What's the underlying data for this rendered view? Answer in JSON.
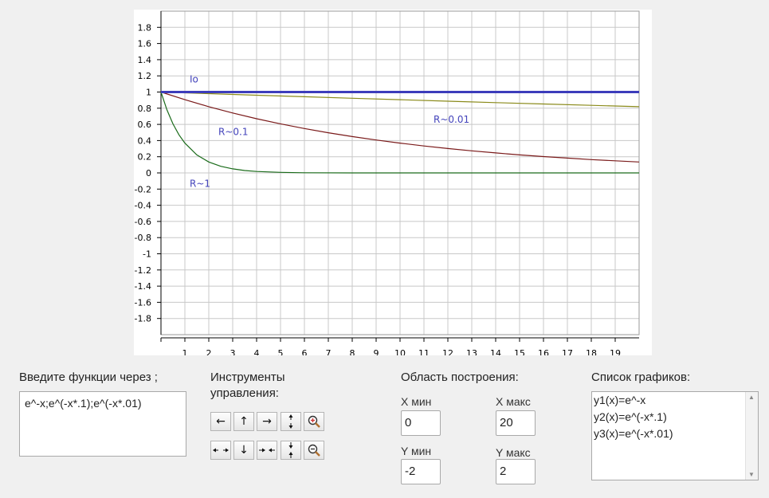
{
  "chart_data": {
    "type": "line",
    "xlim": [
      0,
      20
    ],
    "ylim": [
      -2,
      2
    ],
    "x_ticks": [
      "1",
      "2",
      "3",
      "4",
      "5",
      "6",
      "7",
      "8",
      "9",
      "10",
      "11",
      "12",
      "13",
      "14",
      "15",
      "16",
      "17",
      "18",
      "19"
    ],
    "y_ticks": [
      "1.8",
      "1.6",
      "1.4",
      "1.2",
      "1",
      "0.8",
      "0.6",
      "0.4",
      "0.2",
      "0",
      "-0.2",
      "-0.4",
      "-0.6",
      "-0.8",
      "-1",
      "-1.2",
      "-1.4",
      "-1.6",
      "-1.8"
    ],
    "grid": true,
    "series": [
      {
        "name": "",
        "color": "#1a6b1a",
        "expr": "e^-x",
        "x": [
          0,
          0.25,
          0.5,
          0.75,
          1,
          1.5,
          2,
          2.5,
          3,
          3.5,
          4,
          5,
          6,
          8,
          10,
          12,
          14,
          16,
          18,
          20
        ],
        "y": [
          1,
          0.779,
          0.607,
          0.472,
          0.368,
          0.223,
          0.135,
          0.082,
          0.05,
          0.03,
          0.018,
          0.007,
          0.002,
          0,
          0,
          0,
          0,
          0,
          0,
          0
        ]
      },
      {
        "name": "",
        "color": "#7a1a1a",
        "expr": "e^(-x*.1)",
        "x": [
          0,
          1,
          2,
          3,
          4,
          5,
          6,
          7,
          8,
          9,
          10,
          11,
          12,
          13,
          14,
          15,
          16,
          17,
          18,
          19,
          20
        ],
        "y": [
          1,
          0.905,
          0.819,
          0.741,
          0.67,
          0.607,
          0.549,
          0.497,
          0.449,
          0.407,
          0.368,
          0.333,
          0.301,
          0.273,
          0.247,
          0.223,
          0.202,
          0.183,
          0.165,
          0.15,
          0.135
        ]
      },
      {
        "name": "",
        "color": "#8a8a1a",
        "expr": "e^(-x*.01)",
        "x": [
          0,
          2,
          4,
          6,
          8,
          10,
          12,
          14,
          16,
          18,
          20
        ],
        "y": [
          1,
          0.98,
          0.961,
          0.942,
          0.923,
          0.905,
          0.887,
          0.869,
          0.852,
          0.835,
          0.819
        ]
      },
      {
        "name": "",
        "color": "#3d3dbb",
        "expr": "1",
        "x": [
          0,
          20
        ],
        "y": [
          1,
          1
        ]
      }
    ],
    "annotations": [
      {
        "text": "Io",
        "x": 1.2,
        "y": 1.12
      },
      {
        "text": "R~0.1",
        "x": 2.4,
        "y": 0.47
      },
      {
        "text": "R~0.01",
        "x": 11.4,
        "y": 0.62
      },
      {
        "text": "R~1",
        "x": 1.2,
        "y": -0.17
      }
    ]
  },
  "functions_panel": {
    "label": "Введите функции через ;",
    "value": "e^-x;e^(-x*.1);e^(-x*.01)"
  },
  "tools_panel": {
    "label_line1": "Инструменты",
    "label_line2": "управления:",
    "row1": [
      "←",
      "↑",
      "→"
    ],
    "row2": [
      "↓"
    ]
  },
  "area_panel": {
    "label": "Область построения:",
    "xmin_label": "X мин",
    "xmax_label": "X макс",
    "ymin_label": "Y мин",
    "ymax_label": "Y макс",
    "xmin": "0",
    "xmax": "20",
    "ymin": "-2",
    "ymax": "2"
  },
  "graphs_panel": {
    "label": "Список графиков:",
    "items": [
      "y1(x)=e^-x",
      "y2(x)=e^(-x*.1)",
      "y3(x)=e^(-x*.01)"
    ]
  }
}
